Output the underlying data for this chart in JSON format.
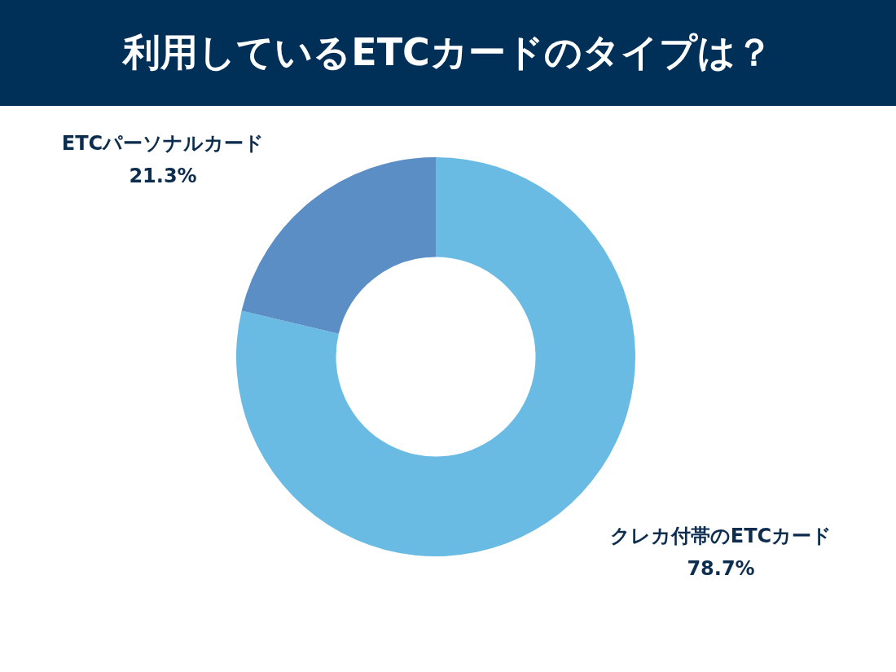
{
  "chart_data": {
    "type": "donut",
    "title": "利用しているETCカードのタイプは？",
    "categories": [
      "クレカ付帯のETCカード",
      "ETCパーソナルカード"
    ],
    "values": [
      78.7,
      21.3
    ],
    "colors": [
      "#6abbe3",
      "#5b8ec4"
    ],
    "value_labels": [
      "78.7%",
      "21.3%"
    ],
    "legend": false
  }
}
